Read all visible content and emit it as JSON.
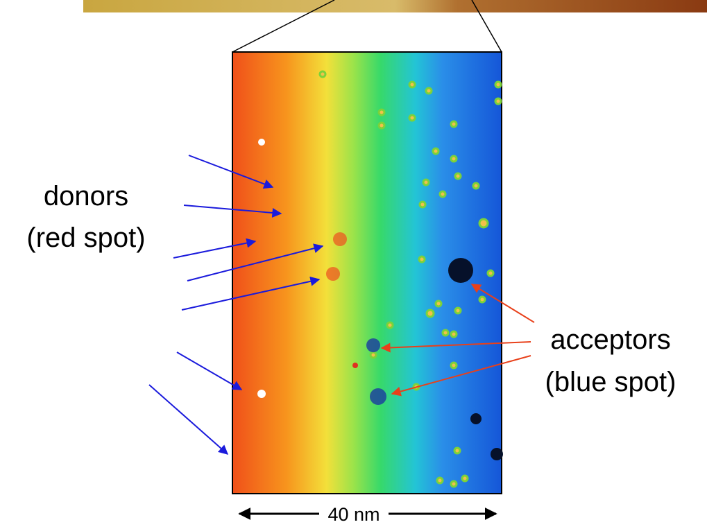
{
  "donors_label": {
    "line1": "donors",
    "line2": "(red spot)"
  },
  "acceptors_label": {
    "line1": "acceptors",
    "line2": "(blue spot)"
  },
  "scale_bar": "40 nm"
}
